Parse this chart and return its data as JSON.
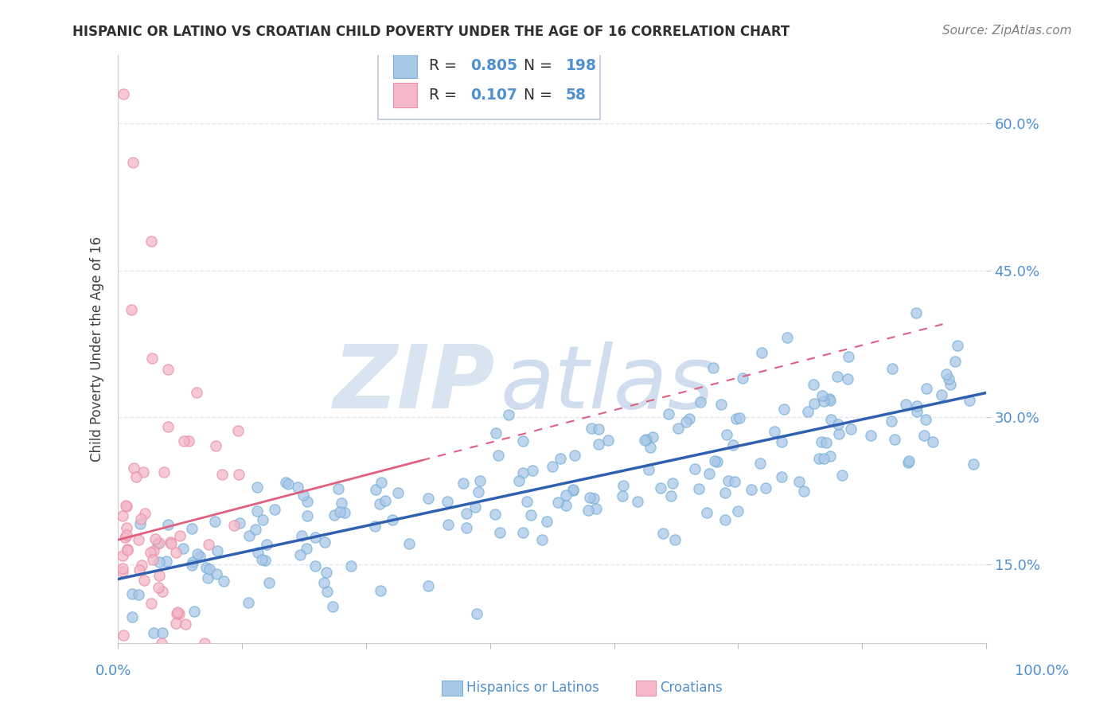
{
  "title": "HISPANIC OR LATINO VS CROATIAN CHILD POVERTY UNDER THE AGE OF 16 CORRELATION CHART",
  "source": "Source: ZipAtlas.com",
  "ylabel": "Child Poverty Under the Age of 16",
  "legend_blue_R": "0.805",
  "legend_blue_N": "198",
  "legend_pink_R": "0.107",
  "legend_pink_N": "58",
  "ytick_vals": [
    0.15,
    0.3,
    0.45,
    0.6
  ],
  "ytick_labels": [
    "15.0%",
    "30.0%",
    "45.0%",
    "60.0%"
  ],
  "xlim": [
    0.0,
    1.0
  ],
  "ylim": [
    0.07,
    0.67
  ],
  "blue_color": "#a8c8e8",
  "blue_edge_color": "#7ab0d8",
  "pink_color": "#f4b8c8",
  "pink_edge_color": "#e890a8",
  "blue_line_color": "#3060b0",
  "pink_line_color": "#e06080",
  "watermark_zip_color": "#d8e4f0",
  "watermark_atlas_color": "#c8d8ec",
  "background_color": "#ffffff",
  "grid_color": "#e0e8f0",
  "title_color": "#303030",
  "source_color": "#808080",
  "tick_label_color": "#5090d0",
  "ylabel_color": "#404040",
  "blue_line_x0": 0.0,
  "blue_line_x1": 1.0,
  "blue_line_y0": 0.135,
  "blue_line_y1": 0.325,
  "pink_line_x0": 0.0,
  "pink_line_x1": 0.95,
  "pink_line_y0": 0.175,
  "pink_line_y1": 0.395
}
